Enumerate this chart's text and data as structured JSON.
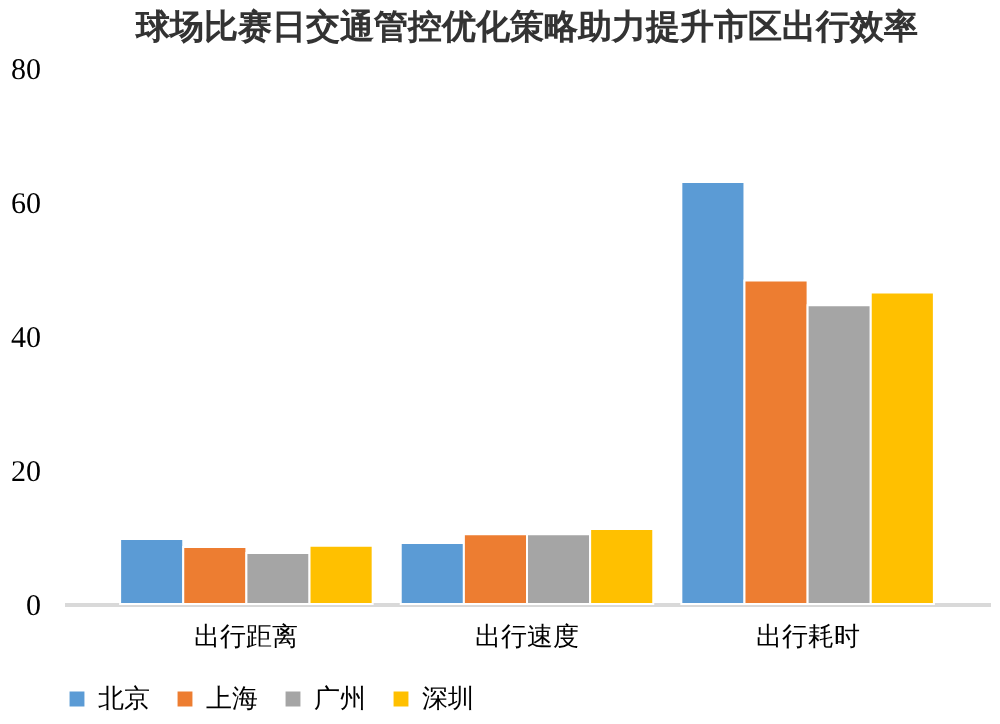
{
  "chart_data": {
    "type": "bar",
    "title": "球场比赛日交通管控优化策略助力提升市区出行效率",
    "categories": [
      "出行距离",
      "出行速度",
      "出行耗时"
    ],
    "series": [
      {
        "name": "北京",
        "color": "#5b9bd5",
        "values": [
          9.7,
          9.1,
          63
        ]
      },
      {
        "name": "上海",
        "color": "#ed7d31",
        "values": [
          8.5,
          10.4,
          48.3
        ]
      },
      {
        "name": "广州",
        "color": "#a5a5a5",
        "values": [
          7.6,
          10.4,
          44.6
        ]
      },
      {
        "name": "深圳",
        "color": "#ffc000",
        "values": [
          8.7,
          11.2,
          46.5
        ]
      }
    ],
    "ylim": [
      0,
      80
    ],
    "yticks": [
      0,
      20,
      40,
      60,
      80
    ],
    "grid": false,
    "legend": "bottom"
  }
}
